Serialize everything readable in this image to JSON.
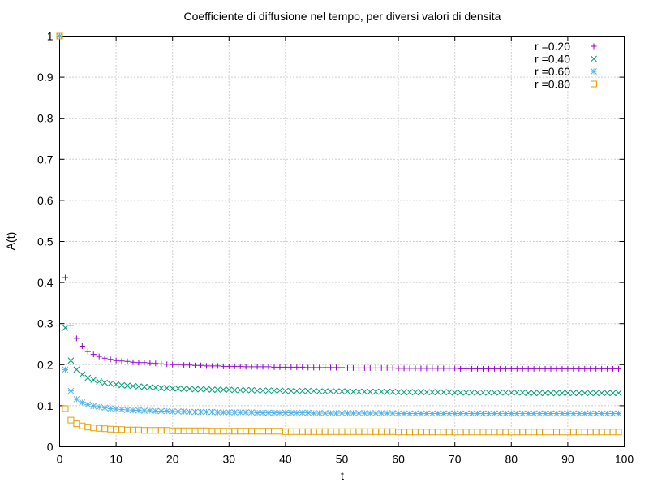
{
  "chart_data": {
    "type": "scatter",
    "title": "Coefficiente di diffusione nel tempo, per diversi valori di densita",
    "xlabel": "t",
    "ylabel": "A(t)",
    "xlim": [
      0,
      100
    ],
    "ylim": [
      0,
      1
    ],
    "xticks": [
      "0",
      "10",
      "20",
      "30",
      "40",
      "50",
      "60",
      "70",
      "80",
      "90",
      "100"
    ],
    "yticks": [
      "0",
      "0.1",
      "0.2",
      "0.3",
      "0.4",
      "0.5",
      "0.6",
      "0.7",
      "0.8",
      "0.9",
      "1"
    ],
    "grid": true,
    "legend_position": "top-right",
    "x": [
      0,
      1,
      2,
      3,
      4,
      5,
      6,
      7,
      8,
      9,
      10,
      11,
      12,
      13,
      14,
      15,
      16,
      17,
      18,
      19,
      20,
      21,
      22,
      23,
      24,
      25,
      26,
      27,
      28,
      29,
      30,
      31,
      32,
      33,
      34,
      35,
      36,
      37,
      38,
      39,
      40,
      41,
      42,
      43,
      44,
      45,
      46,
      47,
      48,
      49,
      50,
      51,
      52,
      53,
      54,
      55,
      56,
      57,
      58,
      59,
      60,
      61,
      62,
      63,
      64,
      65,
      66,
      67,
      68,
      69,
      70,
      71,
      72,
      73,
      74,
      75,
      76,
      77,
      78,
      79,
      80,
      81,
      82,
      83,
      84,
      85,
      86,
      87,
      88,
      89,
      90,
      91,
      92,
      93,
      94,
      95,
      96,
      97,
      98,
      99
    ],
    "series": [
      {
        "name": "r =0.20",
        "color": "#9400d3",
        "marker": "plus",
        "values": [
          1.0,
          0.412,
          0.296,
          0.264,
          0.245,
          0.232,
          0.225,
          0.22,
          0.216,
          0.213,
          0.21,
          0.209,
          0.208,
          0.206,
          0.205,
          0.205,
          0.204,
          0.203,
          0.202,
          0.201,
          0.2,
          0.2,
          0.199,
          0.199,
          0.198,
          0.198,
          0.197,
          0.197,
          0.197,
          0.196,
          0.196,
          0.196,
          0.196,
          0.195,
          0.195,
          0.195,
          0.195,
          0.195,
          0.194,
          0.194,
          0.194,
          0.194,
          0.194,
          0.194,
          0.193,
          0.193,
          0.193,
          0.193,
          0.193,
          0.193,
          0.193,
          0.192,
          0.192,
          0.192,
          0.192,
          0.192,
          0.192,
          0.192,
          0.192,
          0.192,
          0.191,
          0.191,
          0.191,
          0.191,
          0.191,
          0.191,
          0.191,
          0.191,
          0.191,
          0.191,
          0.191,
          0.19,
          0.19,
          0.19,
          0.19,
          0.19,
          0.19,
          0.19,
          0.19,
          0.19,
          0.19,
          0.19,
          0.19,
          0.19,
          0.19,
          0.19,
          0.19,
          0.19,
          0.19,
          0.19,
          0.19,
          0.19,
          0.19,
          0.19,
          0.19,
          0.19,
          0.19,
          0.19,
          0.19,
          0.19
        ]
      },
      {
        "name": "r =0.40",
        "color": "#009e73",
        "marker": "cross",
        "values": [
          1.0,
          0.29,
          0.21,
          0.188,
          0.176,
          0.168,
          0.163,
          0.159,
          0.156,
          0.154,
          0.152,
          0.15,
          0.149,
          0.148,
          0.147,
          0.146,
          0.145,
          0.144,
          0.143,
          0.143,
          0.142,
          0.142,
          0.141,
          0.141,
          0.14,
          0.14,
          0.14,
          0.139,
          0.139,
          0.139,
          0.139,
          0.138,
          0.138,
          0.138,
          0.138,
          0.137,
          0.137,
          0.137,
          0.137,
          0.137,
          0.136,
          0.136,
          0.136,
          0.136,
          0.136,
          0.136,
          0.135,
          0.135,
          0.135,
          0.135,
          0.135,
          0.135,
          0.134,
          0.134,
          0.134,
          0.134,
          0.134,
          0.134,
          0.134,
          0.134,
          0.133,
          0.133,
          0.133,
          0.133,
          0.133,
          0.133,
          0.133,
          0.133,
          0.133,
          0.133,
          0.132,
          0.132,
          0.132,
          0.132,
          0.132,
          0.132,
          0.132,
          0.132,
          0.132,
          0.132,
          0.132,
          0.132,
          0.132,
          0.131,
          0.131,
          0.131,
          0.131,
          0.131,
          0.131,
          0.131,
          0.131,
          0.131,
          0.131,
          0.131,
          0.131,
          0.131,
          0.131,
          0.131,
          0.131,
          0.131
        ]
      },
      {
        "name": "r =0.60",
        "color": "#56b4e9",
        "marker": "star",
        "values": [
          1.0,
          0.188,
          0.136,
          0.116,
          0.108,
          0.103,
          0.099,
          0.097,
          0.095,
          0.093,
          0.092,
          0.091,
          0.09,
          0.089,
          0.089,
          0.088,
          0.088,
          0.087,
          0.087,
          0.087,
          0.086,
          0.086,
          0.086,
          0.085,
          0.085,
          0.085,
          0.085,
          0.085,
          0.084,
          0.084,
          0.084,
          0.084,
          0.084,
          0.084,
          0.084,
          0.083,
          0.083,
          0.083,
          0.083,
          0.083,
          0.083,
          0.083,
          0.083,
          0.083,
          0.083,
          0.082,
          0.082,
          0.082,
          0.082,
          0.082,
          0.082,
          0.082,
          0.082,
          0.082,
          0.082,
          0.082,
          0.082,
          0.082,
          0.082,
          0.082,
          0.081,
          0.081,
          0.081,
          0.081,
          0.081,
          0.081,
          0.081,
          0.081,
          0.081,
          0.081,
          0.081,
          0.081,
          0.081,
          0.081,
          0.081,
          0.081,
          0.081,
          0.081,
          0.081,
          0.081,
          0.081,
          0.081,
          0.081,
          0.081,
          0.081,
          0.081,
          0.081,
          0.081,
          0.081,
          0.081,
          0.081,
          0.081,
          0.081,
          0.081,
          0.081,
          0.081,
          0.081,
          0.081,
          0.081,
          0.081
        ]
      },
      {
        "name": "r =0.80",
        "color": "#e69f00",
        "marker": "square",
        "values": [
          1.0,
          0.093,
          0.065,
          0.056,
          0.051,
          0.048,
          0.046,
          0.045,
          0.044,
          0.043,
          0.042,
          0.042,
          0.041,
          0.041,
          0.041,
          0.04,
          0.04,
          0.04,
          0.04,
          0.04,
          0.039,
          0.039,
          0.039,
          0.039,
          0.039,
          0.039,
          0.039,
          0.038,
          0.038,
          0.038,
          0.038,
          0.038,
          0.038,
          0.038,
          0.038,
          0.038,
          0.038,
          0.038,
          0.038,
          0.038,
          0.037,
          0.037,
          0.037,
          0.037,
          0.037,
          0.037,
          0.037,
          0.037,
          0.037,
          0.037,
          0.037,
          0.037,
          0.037,
          0.037,
          0.037,
          0.037,
          0.037,
          0.037,
          0.037,
          0.037,
          0.036,
          0.036,
          0.036,
          0.036,
          0.036,
          0.036,
          0.036,
          0.036,
          0.036,
          0.036,
          0.036,
          0.036,
          0.036,
          0.036,
          0.036,
          0.036,
          0.036,
          0.036,
          0.036,
          0.036,
          0.036,
          0.036,
          0.036,
          0.036,
          0.036,
          0.036,
          0.036,
          0.036,
          0.036,
          0.036,
          0.036,
          0.036,
          0.036,
          0.036,
          0.036,
          0.036,
          0.036,
          0.036,
          0.036,
          0.036
        ]
      }
    ]
  }
}
